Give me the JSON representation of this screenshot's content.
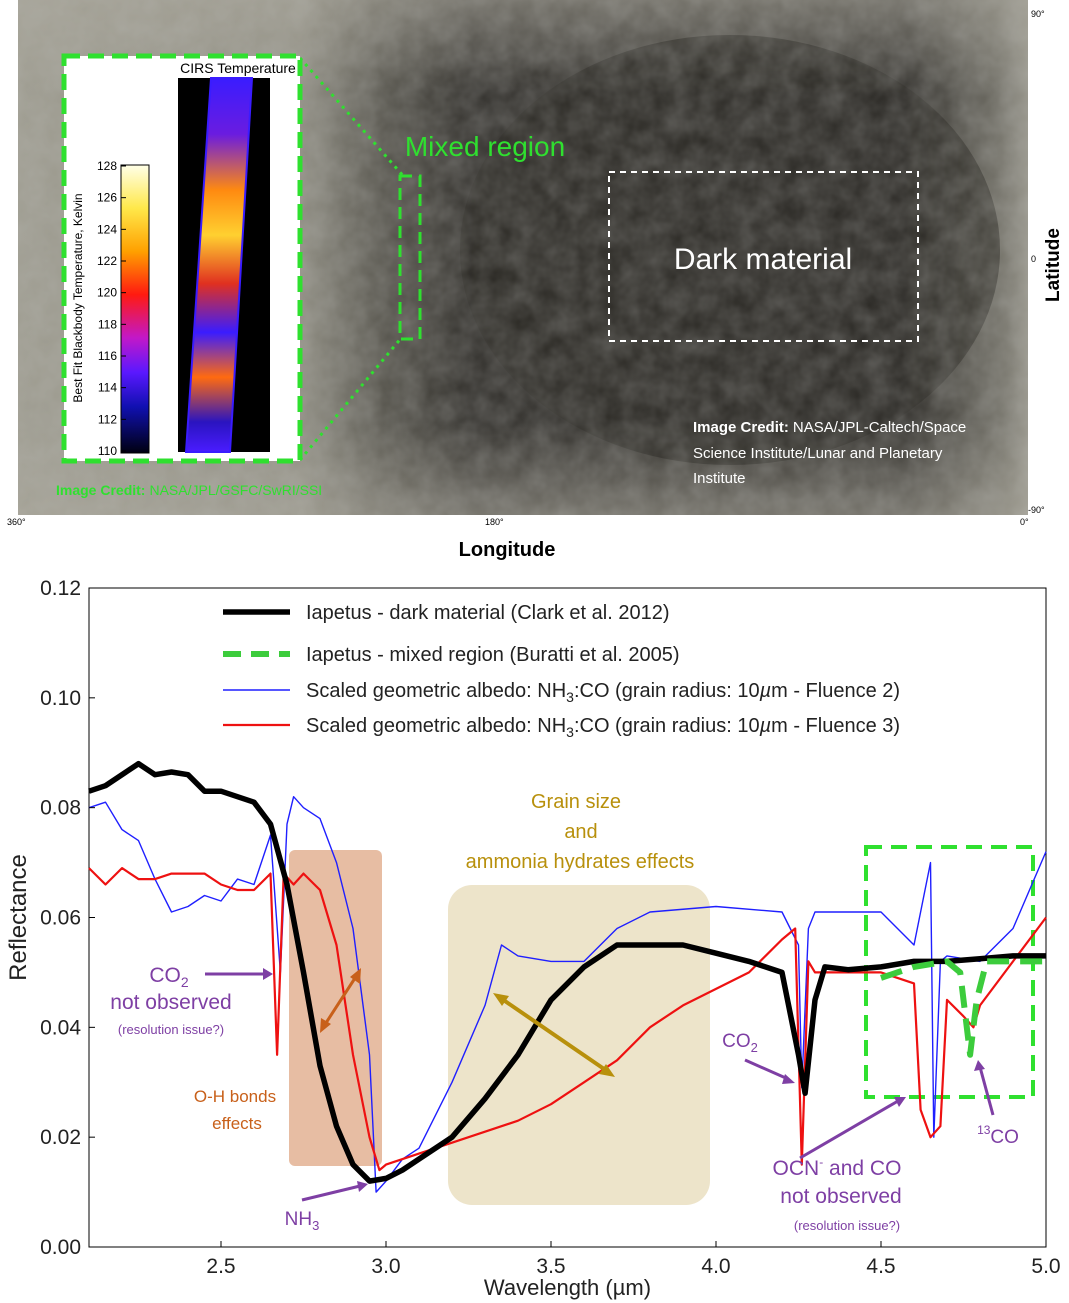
{
  "map": {
    "dark_label": "Dark material",
    "mixed_label": "Mixed region",
    "credit_bold": "Image Credit:",
    "credit_text_lines": [
      "NASA/JPL-Caltech/Space",
      "Science Institute/Lunar and Planetary",
      "Institute"
    ],
    "green_credit_bold": "Image Credit:",
    "green_credit_text": "NASA/JPL/GSFC/SwRI/SSI",
    "lat_label": "Latitude",
    "lon_label": "Longitude",
    "lat_ticks": [
      "90°",
      "0",
      "-90°"
    ],
    "lon_ticks": [
      "360°",
      "180°",
      "0°"
    ],
    "colors": {
      "map_light": "#9a9a8e",
      "map_dark": "#2b2925",
      "mixed_box": "#2fe02f",
      "dark_box": "#ffffff"
    }
  },
  "inset": {
    "title": "CIRS Temperature",
    "ylabel": "Best Fit Blackbody Temperature, Kelvin",
    "ticks": [
      "128",
      "126",
      "124",
      "122",
      "120",
      "118",
      "116",
      "114",
      "112",
      "110"
    ]
  },
  "annotations": {
    "co2_not_observed": [
      "CO",
      "2",
      "not observed"
    ],
    "resolution_issue": "(resolution issue?)",
    "oh_bonds": [
      "O-H bonds",
      "effects"
    ],
    "nh3": [
      "NH",
      "3"
    ],
    "grain_size": [
      "Grain size",
      "and",
      "ammonia hydrates effects"
    ],
    "co2": [
      "CO",
      "2"
    ],
    "ocn": [
      "OCN",
      "-",
      " and CO",
      "not observed"
    ],
    "resolution_issue_2": "(resolution issue?)",
    "co13": [
      "13",
      "CO"
    ]
  },
  "chart_data": {
    "type": "line",
    "title": "",
    "xlabel": "Wavelength (µm)",
    "ylabel": "Reflectance",
    "xlim": [
      2.1,
      5.0
    ],
    "ylim": [
      0.0,
      0.12
    ],
    "xticks": [
      "2.5",
      "3.0",
      "3.5",
      "4.0",
      "4.5",
      "5.0"
    ],
    "yticks": [
      "0.00",
      "0.02",
      "0.04",
      "0.06",
      "0.08",
      "0.10",
      "0.12"
    ],
    "legend_position": "top",
    "series": [
      {
        "name": "Iapetus - dark material (Clark et al. 2012)",
        "color": "#000000",
        "x": [
          2.1,
          2.15,
          2.2,
          2.25,
          2.3,
          2.35,
          2.4,
          2.45,
          2.5,
          2.55,
          2.6,
          2.65,
          2.7,
          2.75,
          2.8,
          2.85,
          2.9,
          2.95,
          3.0,
          3.05,
          3.1,
          3.2,
          3.3,
          3.4,
          3.5,
          3.6,
          3.7,
          3.8,
          3.9,
          4.0,
          4.1,
          4.2,
          4.25,
          4.27,
          4.3,
          4.33,
          4.4,
          4.5,
          4.6,
          4.7,
          4.8,
          4.9,
          5.0
        ],
        "values": [
          0.083,
          0.084,
          0.086,
          0.088,
          0.086,
          0.0865,
          0.086,
          0.083,
          0.083,
          0.082,
          0.081,
          0.077,
          0.066,
          0.05,
          0.033,
          0.022,
          0.015,
          0.012,
          0.0125,
          0.014,
          0.016,
          0.02,
          0.027,
          0.035,
          0.045,
          0.051,
          0.055,
          0.055,
          0.055,
          0.0535,
          0.052,
          0.05,
          0.035,
          0.028,
          0.045,
          0.051,
          0.0505,
          0.051,
          0.052,
          0.052,
          0.0525,
          0.053,
          0.053
        ]
      },
      {
        "name": "Iapetus - mixed region (Buratti et al. 2005)",
        "color": "#3ccc3c",
        "x": [
          4.5,
          4.55,
          4.6,
          4.65,
          4.7,
          4.74,
          4.77,
          4.79,
          4.82,
          4.9,
          5.0
        ],
        "values": [
          0.049,
          0.05,
          0.051,
          0.0515,
          0.052,
          0.05,
          0.035,
          0.045,
          0.052,
          0.052,
          0.052
        ]
      },
      {
        "name": "Scaled geometric albedo: NH3:CO (grain radius: 10µm - Fluence 2)",
        "color": "#1f1fff",
        "x": [
          2.1,
          2.15,
          2.2,
          2.25,
          2.3,
          2.35,
          2.4,
          2.45,
          2.5,
          2.55,
          2.6,
          2.65,
          2.68,
          2.7,
          2.72,
          2.75,
          2.8,
          2.85,
          2.9,
          2.95,
          2.97,
          3.0,
          3.05,
          3.1,
          3.2,
          3.3,
          3.35,
          3.4,
          3.5,
          3.6,
          3.7,
          3.8,
          4.0,
          4.2,
          4.25,
          4.26,
          4.28,
          4.3,
          4.4,
          4.5,
          4.6,
          4.65,
          4.66,
          4.68,
          4.7,
          4.8,
          4.9,
          5.0
        ],
        "values": [
          0.08,
          0.081,
          0.076,
          0.074,
          0.067,
          0.061,
          0.062,
          0.064,
          0.063,
          0.067,
          0.066,
          0.075,
          0.05,
          0.077,
          0.082,
          0.08,
          0.078,
          0.07,
          0.058,
          0.035,
          0.01,
          0.012,
          0.016,
          0.018,
          0.03,
          0.044,
          0.055,
          0.053,
          0.052,
          0.052,
          0.058,
          0.061,
          0.062,
          0.061,
          0.055,
          0.029,
          0.058,
          0.061,
          0.061,
          0.061,
          0.055,
          0.07,
          0.02,
          0.052,
          0.053,
          0.052,
          0.058,
          0.072
        ]
      },
      {
        "name": "Scaled geometric albedo: NH3:CO (grain radius: 10µm - Fluence 3)",
        "color": "#ee1111",
        "x": [
          2.1,
          2.15,
          2.2,
          2.25,
          2.3,
          2.35,
          2.4,
          2.45,
          2.5,
          2.55,
          2.6,
          2.65,
          2.67,
          2.69,
          2.72,
          2.75,
          2.8,
          2.85,
          2.9,
          2.95,
          2.98,
          3.0,
          3.1,
          3.2,
          3.3,
          3.4,
          3.5,
          3.6,
          3.7,
          3.8,
          3.9,
          4.0,
          4.1,
          4.2,
          4.24,
          4.26,
          4.28,
          4.3,
          4.4,
          4.5,
          4.55,
          4.6,
          4.62,
          4.65,
          4.68,
          4.7,
          4.75,
          4.78,
          4.8,
          4.9,
          5.0
        ],
        "values": [
          0.069,
          0.066,
          0.069,
          0.067,
          0.067,
          0.068,
          0.068,
          0.068,
          0.066,
          0.065,
          0.065,
          0.068,
          0.035,
          0.068,
          0.066,
          0.068,
          0.065,
          0.055,
          0.035,
          0.02,
          0.014,
          0.015,
          0.017,
          0.019,
          0.021,
          0.023,
          0.026,
          0.03,
          0.034,
          0.04,
          0.044,
          0.047,
          0.05,
          0.056,
          0.058,
          0.015,
          0.052,
          0.05,
          0.05,
          0.05,
          0.049,
          0.048,
          0.025,
          0.02,
          0.022,
          0.045,
          0.042,
          0.04,
          0.044,
          0.052,
          0.06
        ]
      }
    ]
  }
}
